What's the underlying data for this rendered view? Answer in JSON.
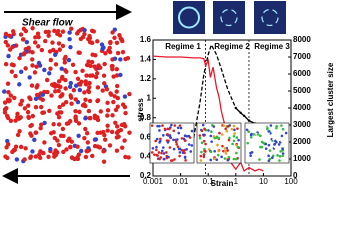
{
  "chart_data": {
    "type": "line",
    "left_title": "Shear flow",
    "xlabel": "Strain",
    "ylabel": "stress",
    "y2label": "Largest cluster size",
    "annotations": [
      "Regime 1",
      "Regime 2",
      "Regime 3"
    ],
    "vlines": [
      0.08,
      3
    ],
    "log_x": true,
    "xlim": [
      0.001,
      100
    ],
    "xticks": [
      0.001,
      0.01,
      0.1,
      1,
      10,
      100
    ],
    "ylim": [
      0.2,
      1.6
    ],
    "yticks": [
      0.2,
      0.4,
      0.6,
      0.8,
      1.0,
      1.2,
      1.4,
      1.6
    ],
    "y2lim": [
      0,
      8000
    ],
    "y2ticks": [
      0,
      1000,
      2000,
      3000,
      4000,
      5000,
      6000,
      7000,
      8000
    ],
    "series": [
      {
        "color": "#000000",
        "dashed": true,
        "axis": "y",
        "x": [
          0.02,
          0.03,
          0.05,
          0.07,
          0.1,
          0.13,
          0.2,
          0.3,
          0.5,
          0.7,
          1
        ],
        "values": [
          0.35,
          0.6,
          0.95,
          1.25,
          1.45,
          1.55,
          1.45,
          1.3,
          1.1,
          1.0,
          0.9
        ]
      },
      {
        "color": "#000000",
        "dashed": false,
        "axis": "y",
        "x": [
          1,
          1.5,
          2,
          3,
          5,
          7,
          10
        ],
        "values": [
          0.9,
          0.85,
          0.82,
          0.77,
          0.74,
          0.72,
          0.71
        ]
      },
      {
        "color": "#e8192c",
        "dashed": false,
        "axis": "y2",
        "x": [
          0.001,
          0.003,
          0.01,
          0.03,
          0.05,
          0.07,
          0.08,
          0.1,
          0.12,
          0.15,
          0.2,
          0.25,
          0.3,
          0.4,
          0.5,
          0.6,
          0.8,
          1,
          1.5,
          2,
          3,
          5,
          7,
          10
        ],
        "values": [
          7050,
          7000,
          7000,
          6950,
          6950,
          6900,
          6500,
          6800,
          5800,
          6400,
          5200,
          4600,
          3800,
          3000,
          1800,
          900,
          600,
          400,
          800,
          300,
          500,
          300,
          400,
          300
        ]
      }
    ]
  }
}
